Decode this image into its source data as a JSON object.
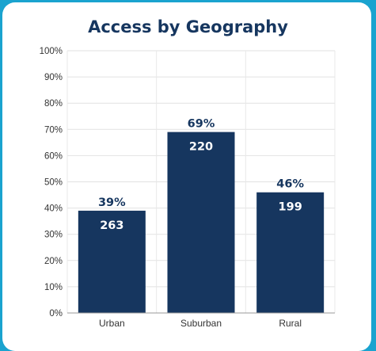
{
  "chart_data": {
    "type": "bar",
    "title": "Access by Geography",
    "categories": [
      "Urban",
      "Suburban",
      "Rural"
    ],
    "values": [
      39,
      69,
      46
    ],
    "counts": [
      263,
      220,
      199
    ],
    "value_labels": [
      "39%",
      "69%",
      "46%"
    ],
    "count_labels": [
      "263",
      "220",
      "199"
    ],
    "y_ticks": [
      "0%",
      "10%",
      "20%",
      "30%",
      "40%",
      "50%",
      "60%",
      "70%",
      "80%",
      "90%",
      "100%"
    ],
    "ylim": [
      0,
      100
    ],
    "xlabel": "",
    "ylabel": "",
    "grid": true,
    "bar_color": "#16365f",
    "border_color": "#1aa3cf"
  }
}
